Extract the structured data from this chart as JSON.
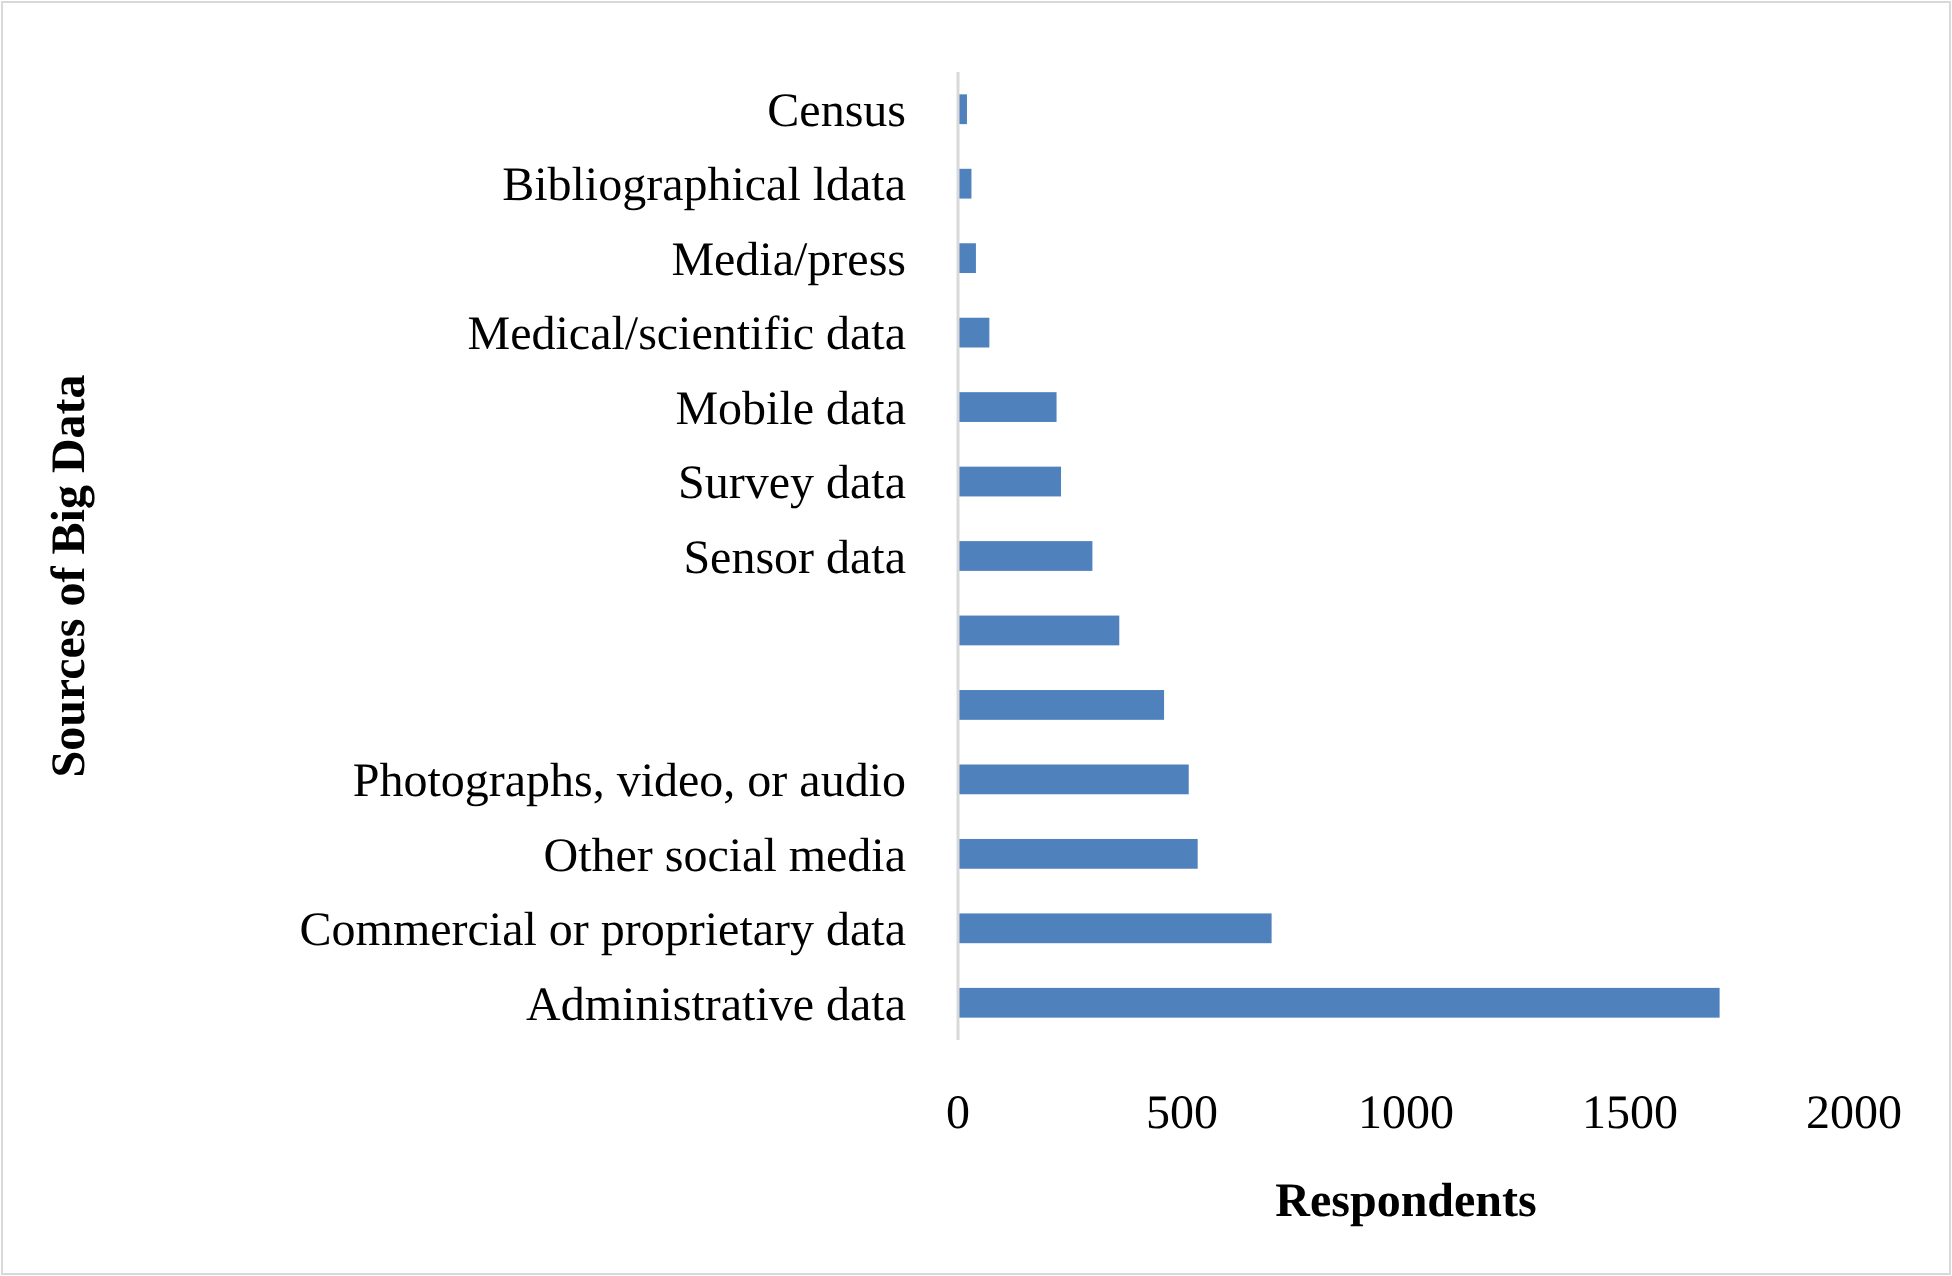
{
  "chart_data": {
    "type": "bar",
    "orientation": "horizontal",
    "xlabel": "Respondents",
    "ylabel": "Sources of Big Data",
    "categories": [
      "Census",
      "Bibliographical ldata",
      "Media/press",
      "Medical/scientific data",
      "Mobile data",
      "Survey data",
      "Sensor data",
      null,
      null,
      "Photographs, video, or audio",
      "Other social media",
      "Commercial or proprietary data",
      "Administrative data"
    ],
    "values": [
      20,
      30,
      40,
      70,
      220,
      230,
      300,
      360,
      460,
      515,
      535,
      700,
      1700
    ],
    "color": "#4f81bd",
    "xlim": [
      0,
      2000
    ],
    "xticks": [
      0,
      500,
      1000,
      1500,
      2000
    ]
  }
}
